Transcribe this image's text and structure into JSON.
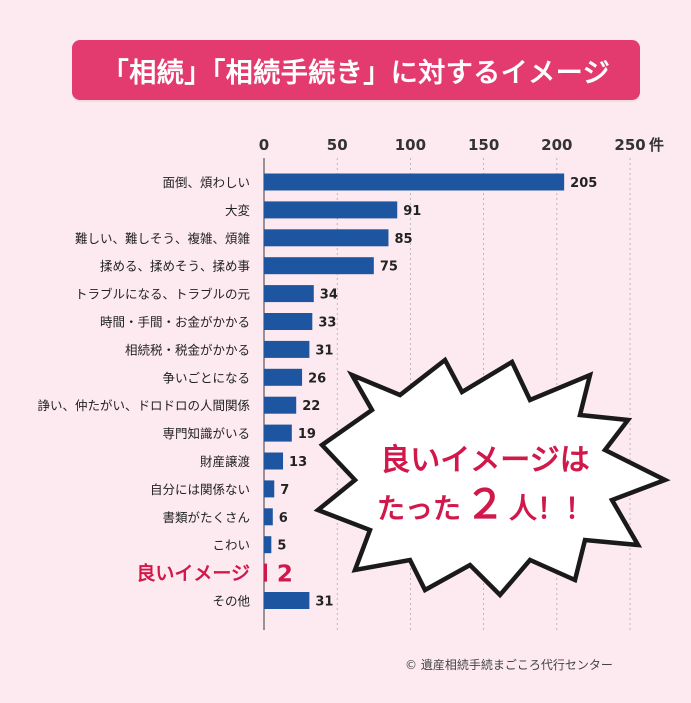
{
  "title": "「相続」「相続手続き」に対するイメージ",
  "chart_data": {
    "type": "bar",
    "orientation": "horizontal",
    "xlim": [
      0,
      250
    ],
    "x_ticks": [
      0,
      50,
      100,
      150,
      200,
      250
    ],
    "x_unit": "件",
    "grid": true,
    "bar_color": "#1d55a0",
    "categories": [
      "面倒、煩わしい",
      "大変",
      "難しい、難しそう、複雑、煩雑",
      "揉める、揉めそう、揉め事",
      "トラブルになる、トラブルの元",
      "時間・手間・お金がかかる",
      "相続税・税金がかかる",
      "争いごとになる",
      "諍い、仲たがい、ドロドロの人間関係",
      "専門知識がいる",
      "財産譲渡",
      "自分には関係ない",
      "書類がたくさん",
      "こわい",
      "良いイメージ",
      "その他"
    ],
    "values": [
      205,
      91,
      85,
      75,
      34,
      33,
      31,
      26,
      22,
      19,
      13,
      7,
      6,
      5,
      2,
      31
    ],
    "highlight_category": "良いイメージ",
    "highlight_color": "#d0184a"
  },
  "callout": {
    "line1": "良いイメージは",
    "line2_prefix": "たった",
    "line2_number": "２",
    "line2_suffix": "人！！"
  },
  "copyright": "© 遺産相続手続まごころ代行センター"
}
